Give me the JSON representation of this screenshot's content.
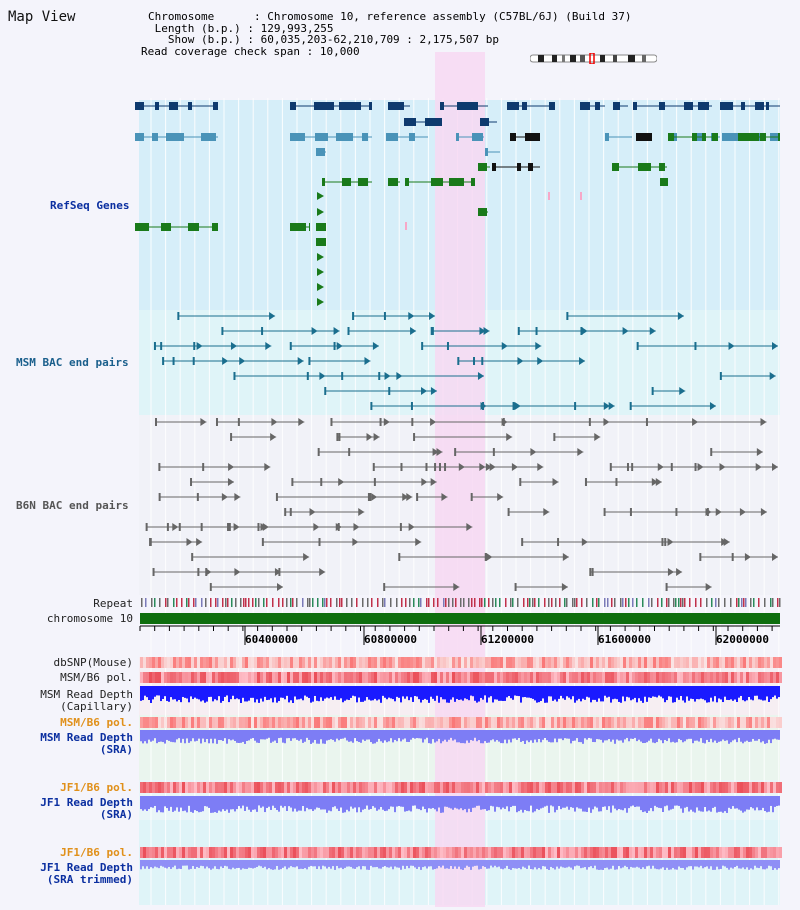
{
  "page": {
    "title": "Map View"
  },
  "header": {
    "chromosome_key": "Chromosome",
    "chromosome_value": "Chromosome 10, reference assembly (C57BL/6J) (Build 37)",
    "length_key": "Length (b.p.)",
    "length_value": "129,993,255",
    "show_key": "Show (b.p.)",
    "show_value": "60,035,203-62,210,709 : 2,175,507 bp",
    "coverage_key": "Read coverage check span",
    "coverage_value": "10,000"
  },
  "tracks": {
    "refseq_label": "RefSeq Genes",
    "msm_bac_label": "MSM BAC end pairs",
    "b6n_bac_label": "B6N BAC end pairs",
    "repeat_label": "Repeat",
    "chromosome_label": "chromosome 10",
    "dbsnp_label": "dbSNP(Mouse)",
    "msm_b6_pol_label": "MSM/B6 pol.",
    "msm_depth_cap_label_1": "MSM Read Depth",
    "msm_depth_cap_label_2": "(Capillary)",
    "msm_b6_pol2_label": "MSM/B6 pol.",
    "msm_depth_sra_label_1": "MSM Read Depth",
    "msm_depth_sra_label_2": "(SRA)",
    "jf1_pol_label": "JF1/B6 pol.",
    "jf1_depth_label_1": "JF1 Read Depth",
    "jf1_depth_label_2": "(SRA)",
    "jf1_pol2_label": "JF1/B6 pol.",
    "jf1_trim_label_1": "JF1 Read Depth",
    "jf1_trim_label_2": "(SRA trimmed)"
  },
  "axis": {
    "ticks": [
      "60400000",
      "60800000",
      "61200000",
      "61600000",
      "62000000"
    ],
    "range": [
      60035203,
      62210709
    ]
  },
  "colors": {
    "highlight": "#f7d8f2",
    "refseq_bg": "#d6eef9",
    "msm_bg": "#dff4f8",
    "b6n_bg": "#f1f2f8",
    "gene_navy": "#0e3a6e",
    "gene_steel": "#4a93b8",
    "gene_green": "#1a7a1a",
    "bac_msm": "#1a6e8e",
    "bac_b6n": "#666666",
    "chrom_green": "#0e6e0e",
    "depth_blue": "#1a1aff",
    "depth_lilac": "#7d7df5"
  }
}
